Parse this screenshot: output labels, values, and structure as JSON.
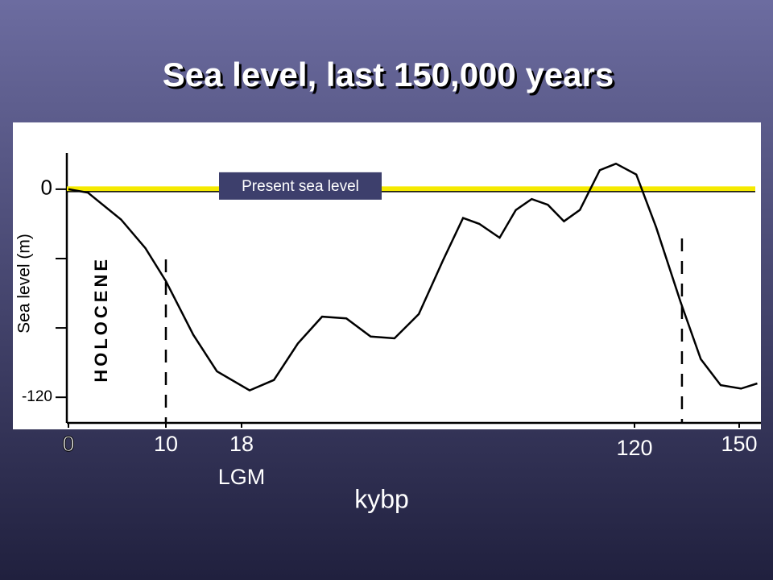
{
  "chart_data": {
    "type": "line",
    "title": "Sea level, last 150,000 years",
    "xlabel": "kybp",
    "ylabel": "Sea level (m)",
    "x": [
      0,
      2,
      5.4,
      7.9,
      10,
      12.9,
      15.4,
      20.1,
      26.4,
      32.6,
      38.9,
      45.2,
      51.5,
      57.7,
      64,
      70.3,
      75.5,
      79.7,
      85,
      89.2,
      93.3,
      97.5,
      101.7,
      105.8,
      111,
      115.2,
      120.5,
      126.2,
      133.2,
      139,
      144.7,
      150.5,
      155
    ],
    "series": [
      {
        "color": "#000000",
        "values": [
          0,
          -2,
          -17.5,
          -34,
          -53,
          -84,
          -105,
          -116,
          -110,
          -89,
          -73.5,
          -74.5,
          -85,
          -86,
          -72,
          -41,
          -16.6,
          -20,
          -28,
          -12,
          -5.7,
          -9,
          -18.5,
          -12,
          11,
          14.7,
          8.5,
          -22,
          -65,
          -98,
          -113,
          -115,
          -112
        ]
      }
    ],
    "xlim": [
      -5.7,
      156
    ],
    "ylim": [
      -138.5,
      38.5
    ],
    "xticks": [
      0,
      10,
      18,
      120,
      150
    ],
    "yticks": [
      0,
      -120
    ],
    "minor_yticks": [
      -40,
      -80
    ],
    "vlines": [
      10,
      133.6
    ],
    "reference_line": {
      "y": 0,
      "color": "#f5ea00",
      "label": "Present sea level"
    },
    "annotations": [
      {
        "text": "HOLOCENE",
        "x": 3.5,
        "y": -75
      },
      {
        "text": "LGM",
        "x": 18,
        "y": 0
      }
    ]
  }
}
